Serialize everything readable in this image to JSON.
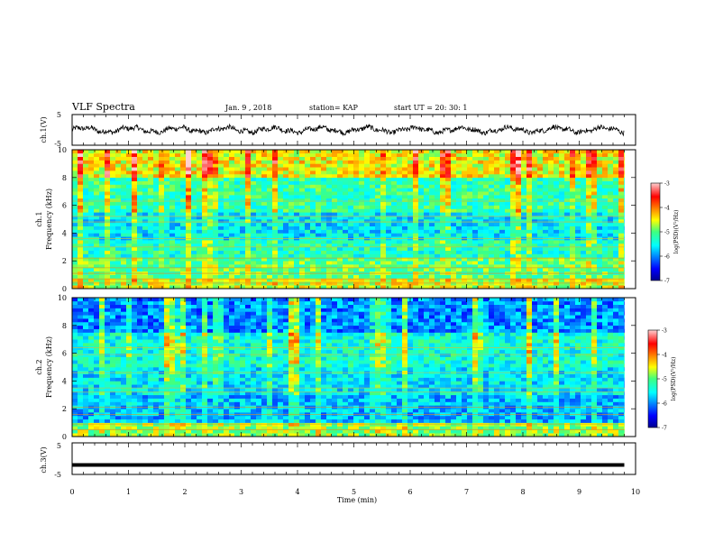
{
  "header": {
    "title": "VLF Spectra",
    "date": "Jan. 9 , 2018",
    "station": "station= KAP",
    "start": "start UT = 20: 30: 1"
  },
  "chart_data": [
    {
      "type": "line",
      "panel": "ch1-waveform",
      "ylabel": "ch.1(V)",
      "ylim": [
        -5,
        5
      ],
      "yticks": [
        "5",
        "-5"
      ],
      "xlim": [
        0,
        10
      ],
      "note_values": "noisy trace oscillating roughly between -1.5 and 1.5 V across 0–9.8 min",
      "color": "#000000"
    },
    {
      "type": "heatmap",
      "panel": "ch1-spectrogram",
      "ylabel": "ch.1\nFrequency (kHz)",
      "ylabel_lines": [
        "ch.1",
        "Frequency (kHz)"
      ],
      "ylim": [
        0,
        10
      ],
      "yticks": [
        "0",
        "2",
        "4",
        "6",
        "8",
        "10"
      ],
      "xlim": [
        0,
        10
      ],
      "data_extent_min": 9.8,
      "colorbar": {
        "label": "log(PSD)(V²/Hz)",
        "range": [
          -7,
          -3
        ],
        "ticks": [
          "-3",
          "-4",
          "-5",
          "-6",
          "-7"
        ]
      },
      "bands": [
        {
          "from": 0.0,
          "to": 0.8,
          "level": -4.6
        },
        {
          "from": 0.8,
          "to": 2.2,
          "level": -5.0
        },
        {
          "from": 2.2,
          "to": 3.5,
          "level": -5.3
        },
        {
          "from": 3.5,
          "to": 5.5,
          "level": -5.6
        },
        {
          "from": 5.5,
          "to": 8.0,
          "level": -5.2
        },
        {
          "from": 8.0,
          "to": 10.0,
          "level": -4.5
        }
      ]
    },
    {
      "type": "heatmap",
      "panel": "ch2-spectrogram",
      "ylabel": "ch.2\nFrequency (kHz)",
      "ylabel_lines": [
        "ch.2",
        "Frequency (kHz)"
      ],
      "ylim": [
        0,
        10
      ],
      "yticks": [
        "0",
        "2",
        "4",
        "6",
        "8",
        "10"
      ],
      "xlim": [
        0,
        10
      ],
      "data_extent_min": 9.8,
      "colorbar": {
        "label": "log(PSD)(V²/Hz)",
        "range": [
          -7,
          -3
        ],
        "ticks": [
          "-3",
          "-4",
          "-5",
          "-6",
          "-7"
        ]
      },
      "bands": [
        {
          "from": 0.0,
          "to": 1.0,
          "level": -4.8
        },
        {
          "from": 1.0,
          "to": 3.0,
          "level": -5.8
        },
        {
          "from": 3.0,
          "to": 5.0,
          "level": -5.6
        },
        {
          "from": 5.0,
          "to": 7.5,
          "level": -5.4
        },
        {
          "from": 7.5,
          "to": 10.0,
          "level": -6.0
        }
      ]
    },
    {
      "type": "line",
      "panel": "ch3-waveform",
      "ylabel": "ch.3(V)",
      "ylim": [
        -5,
        5
      ],
      "yticks": [
        "5",
        "-5"
      ],
      "xlim": [
        0,
        10
      ],
      "values_const": -2,
      "color": "#000000"
    }
  ],
  "xaxis": {
    "label": "Time (min)",
    "ticks": [
      "0",
      "1",
      "2",
      "3",
      "4",
      "5",
      "6",
      "7",
      "8",
      "9",
      "10"
    ]
  }
}
